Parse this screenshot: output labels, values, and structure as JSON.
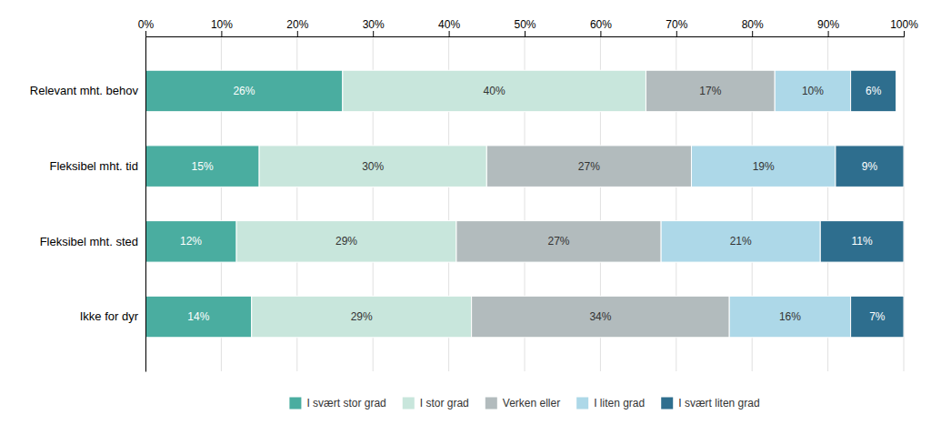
{
  "chart_data": {
    "type": "bar",
    "orientation": "horizontal",
    "stacked": true,
    "categories": [
      "Relevant mht. behov",
      "Fleksibel mht. tid",
      "Fleksibel mht. sted",
      "Ikke for dyr"
    ],
    "series": [
      {
        "name": "I svært stor grad",
        "color": "#4AADA0",
        "values": [
          26,
          15,
          12,
          14
        ],
        "value_labels": [
          "26%",
          "15%",
          "12%",
          "14%"
        ]
      },
      {
        "name": "I stor grad",
        "color": "#C8E6DC",
        "values": [
          40,
          30,
          29,
          29
        ],
        "value_labels": [
          "40%",
          "30%",
          "29%",
          "29%"
        ]
      },
      {
        "name": "Verken eller",
        "color": "#B2BBBD",
        "values": [
          17,
          27,
          27,
          34
        ],
        "value_labels": [
          "17%",
          "27%",
          "27%",
          "34%"
        ]
      },
      {
        "name": "I liten grad",
        "color": "#ADD8E8",
        "values": [
          10,
          19,
          21,
          16
        ],
        "value_labels": [
          "10%",
          "19%",
          "21%",
          "16%"
        ]
      },
      {
        "name": "I svært liten grad",
        "color": "#2E6E8E",
        "values": [
          6,
          9,
          11,
          7
        ],
        "value_labels": [
          "6%",
          "9%",
          "11%",
          "7%"
        ]
      }
    ],
    "xlim": [
      0,
      100
    ],
    "xticks": [
      {
        "value": 0,
        "label": "0%"
      },
      {
        "value": 10,
        "label": "10%"
      },
      {
        "value": 20,
        "label": "20%"
      },
      {
        "value": 30,
        "label": "30%"
      },
      {
        "value": 40,
        "label": "40%"
      },
      {
        "value": 50,
        "label": "50%"
      },
      {
        "value": 60,
        "label": "60%"
      },
      {
        "value": 70,
        "label": "70%"
      },
      {
        "value": 80,
        "label": "80%"
      },
      {
        "value": 90,
        "label": "90%"
      },
      {
        "value": 100,
        "label": "100%"
      }
    ],
    "grid": true,
    "data_labels": true,
    "legend": "bottom"
  }
}
